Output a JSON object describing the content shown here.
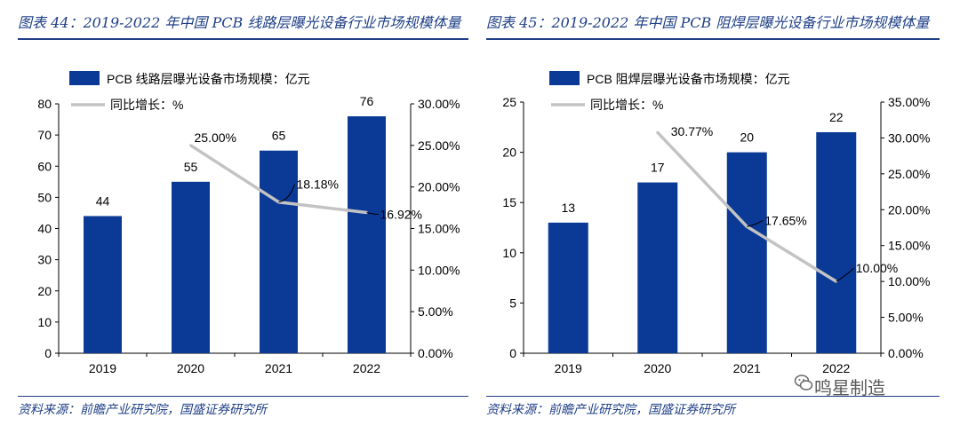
{
  "left": {
    "title": "图表 44：2019-2022 年中国 PCB 线路层曝光设备行业市场规模体量",
    "source": "资料来源：前瞻产业研究院，国盛证券研究所",
    "chart_data": {
      "type": "bar",
      "categories": [
        "2019",
        "2020",
        "2021",
        "2022"
      ],
      "series": [
        {
          "name": "PCB 线路层曝光设备市场规模：亿元",
          "kind": "bar",
          "axis": "left",
          "values": [
            44,
            55,
            65,
            76
          ],
          "labels": [
            "44",
            "55",
            "65",
            "76"
          ]
        },
        {
          "name": "同比增长：%",
          "kind": "line",
          "axis": "right",
          "values": [
            null,
            25.0,
            18.18,
            16.92
          ],
          "labels": [
            "",
            "25.00%",
            "18.18%",
            "16.92%"
          ]
        }
      ],
      "ylim": [
        0,
        80
      ],
      "yticks": [
        "0",
        "10",
        "20",
        "30",
        "40",
        "50",
        "60",
        "70",
        "80"
      ],
      "y2lim": [
        0,
        30
      ],
      "y2ticks": [
        "0.00%",
        "5.00%",
        "10.00%",
        "15.00%",
        "20.00%",
        "25.00%",
        "30.00%"
      ],
      "legend_position": "top-left",
      "grid": false,
      "bar_color": "#0b3a96",
      "line_color": "#c3c3c3"
    }
  },
  "right": {
    "title": "图表 45：2019-2022 年中国 PCB 阻焊层曝光设备行业市场规模体量",
    "source": "资料来源：前瞻产业研究院，国盛证券研究所",
    "chart_data": {
      "type": "bar",
      "categories": [
        "2019",
        "2020",
        "2021",
        "2022"
      ],
      "series": [
        {
          "name": "PCB 阻焊层曝光设备市场规模：亿元",
          "kind": "bar",
          "axis": "left",
          "values": [
            13,
            17,
            20,
            22
          ],
          "labels": [
            "13",
            "17",
            "20",
            "22"
          ]
        },
        {
          "name": "同比增长：%",
          "kind": "line",
          "axis": "right",
          "values": [
            null,
            30.77,
            17.65,
            10.0
          ],
          "labels": [
            "",
            "30.77%",
            "17.65%",
            "10.00%"
          ]
        }
      ],
      "ylim": [
        0,
        25
      ],
      "yticks": [
        "0",
        "5",
        "10",
        "15",
        "20",
        "25"
      ],
      "y2lim": [
        0,
        35
      ],
      "y2ticks": [
        "0.00%",
        "5.00%",
        "10.00%",
        "15.00%",
        "20.00%",
        "25.00%",
        "30.00%",
        "35.00%"
      ],
      "legend_position": "top-left",
      "grid": false,
      "bar_color": "#0b3a96",
      "line_color": "#c3c3c3"
    }
  },
  "watermark": "鸣星制造"
}
